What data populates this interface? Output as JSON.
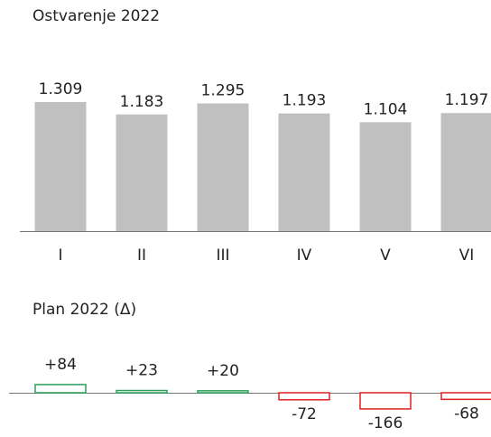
{
  "chart_data": [
    {
      "type": "bar",
      "title": "Ostvarenje 2022",
      "categories": [
        "I",
        "II",
        "III",
        "IV",
        "V",
        "VI"
      ],
      "values": [
        1309,
        1183,
        1295,
        1193,
        1104,
        1197
      ],
      "value_labels": [
        "1.309",
        "1.183",
        "1.295",
        "1.193",
        "1.104",
        "1.197"
      ],
      "color": "#c0c0c0"
    },
    {
      "type": "delta",
      "title": "Plan 2022 (Δ)",
      "values": [
        84,
        23,
        20,
        -72,
        -166,
        -68
      ],
      "value_labels": [
        "+84",
        "+23",
        "+20",
        "-72",
        "-166",
        "-68"
      ],
      "color_positive": "#2ca05a",
      "color_negative": "#e02020"
    }
  ]
}
